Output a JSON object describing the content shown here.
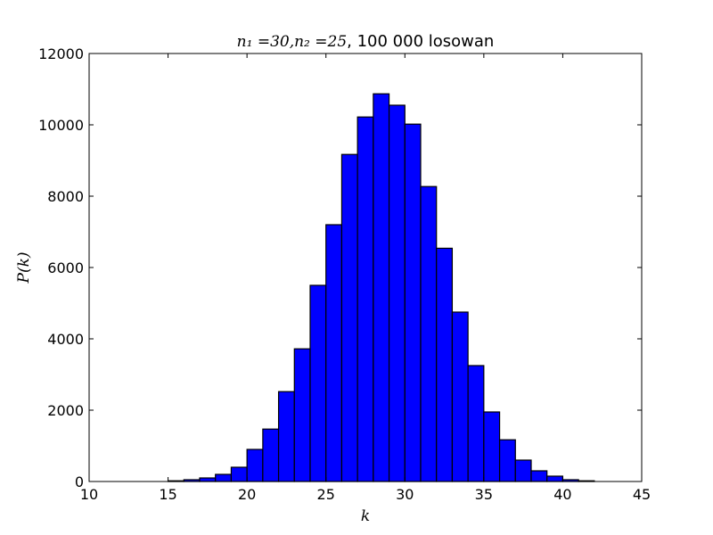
{
  "chart_data": {
    "type": "bar",
    "title": "n_1 = 30, n_2 = 25, 100 000 losowan",
    "title_math": "n₁ =30,n₂ =25",
    "title_text": ", 100 000 losowan",
    "xlabel": "k",
    "ylabel": "P(k)",
    "xlim": [
      10,
      45
    ],
    "ylim": [
      0,
      12000
    ],
    "xticks": [
      "10",
      "15",
      "20",
      "25",
      "30",
      "35",
      "40",
      "45"
    ],
    "yticks": [
      "0",
      "2000",
      "4000",
      "6000",
      "8000",
      "10000",
      "12000"
    ],
    "bin_width": 1,
    "bin_starts": [
      15,
      16,
      17,
      18,
      19,
      20,
      21,
      22,
      23,
      24,
      25,
      26,
      27,
      28,
      29,
      30,
      31,
      32,
      33,
      34,
      35,
      36,
      37,
      38,
      39,
      40,
      41
    ],
    "values": [
      20,
      50,
      100,
      200,
      400,
      900,
      1470,
      2520,
      3720,
      5500,
      7200,
      9170,
      10220,
      10870,
      10550,
      10020,
      8270,
      6540,
      4750,
      3250,
      1950,
      1170,
      600,
      300,
      150,
      50,
      20
    ],
    "bar_color": "#0000ff",
    "edge_color": "#000000",
    "grid": false,
    "legend": "none"
  }
}
